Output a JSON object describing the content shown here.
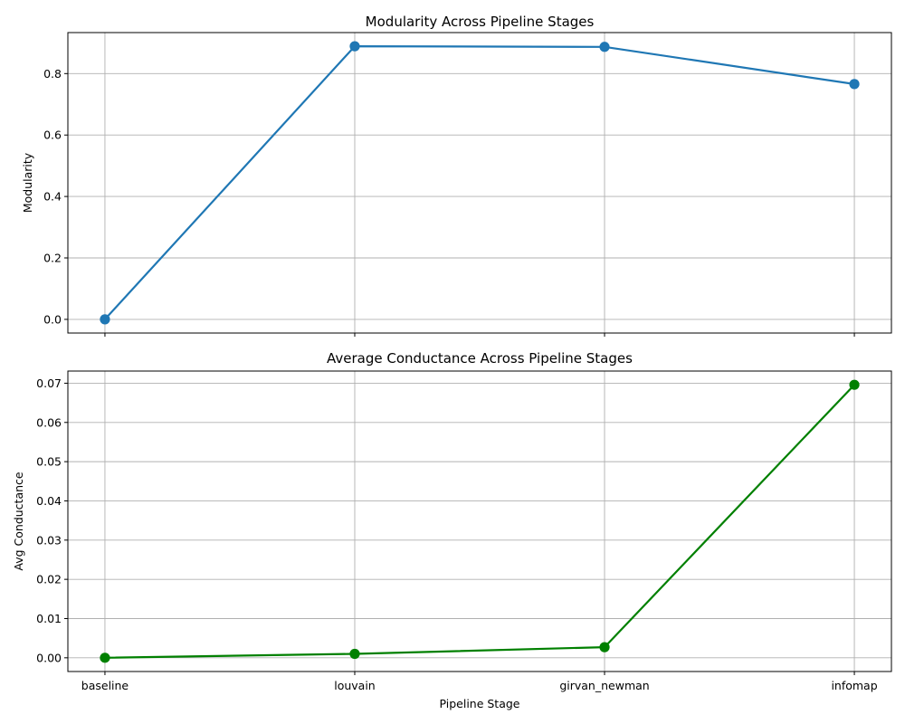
{
  "chart_data": [
    {
      "type": "line",
      "title": "Modularity Across Pipeline Stages",
      "xlabel": "",
      "ylabel": "Modularity",
      "categories": [
        "baseline",
        "louvain",
        "girvan_newman",
        "infomap"
      ],
      "show_x_tick_labels": false,
      "series": [
        {
          "values": [
            0.0,
            0.889,
            0.887,
            0.766
          ],
          "color": "#1f77b4"
        }
      ],
      "ylim": [
        -0.0445,
        0.9335
      ],
      "yticks": [
        0.0,
        0.2,
        0.4,
        0.6,
        0.8
      ],
      "ytick_labels": [
        "0.0",
        "0.2",
        "0.4",
        "0.6",
        "0.8"
      ],
      "grid": true
    },
    {
      "type": "line",
      "title": "Average Conductance Across Pipeline Stages",
      "xlabel": "Pipeline Stage",
      "ylabel": "Avg Conductance",
      "categories": [
        "baseline",
        "louvain",
        "girvan_newman",
        "infomap"
      ],
      "show_x_tick_labels": true,
      "series": [
        {
          "values": [
            0.0,
            0.001,
            0.0027,
            0.0696
          ],
          "color": "#008000"
        }
      ],
      "ylim": [
        -0.0035,
        0.0731
      ],
      "yticks": [
        0.0,
        0.01,
        0.02,
        0.03,
        0.04,
        0.05,
        0.06,
        0.07
      ],
      "ytick_labels": [
        "0.00",
        "0.01",
        "0.02",
        "0.03",
        "0.04",
        "0.05",
        "0.06",
        "0.07"
      ],
      "grid": true
    }
  ]
}
